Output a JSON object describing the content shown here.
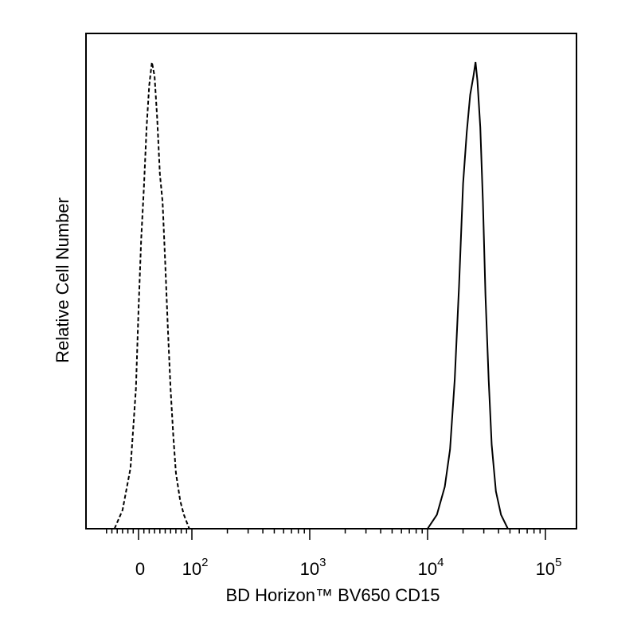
{
  "chart_data": {
    "type": "area",
    "title": "",
    "xlabel": "BD Horizon™  BV650 CD15",
    "ylabel": "Relative Cell Number",
    "xscale": "biexponential (linear near 0, log above 10^2)",
    "xlim": [
      -100,
      200000
    ],
    "ylim": [
      0,
      1.0
    ],
    "grid": false,
    "legend": "none",
    "x_ticks": [
      {
        "value": 0,
        "base": "0",
        "exp": ""
      },
      {
        "value": 100,
        "base": "10",
        "exp": "2"
      },
      {
        "value": 1000,
        "base": "10",
        "exp": "3"
      },
      {
        "value": 10000,
        "base": "10",
        "exp": "4"
      },
      {
        "value": 100000,
        "base": "10",
        "exp": "5"
      }
    ],
    "series": [
      {
        "style": "dashed",
        "x": [
          -45,
          -30,
          -15,
          -5,
          0,
          5,
          10,
          15,
          20,
          25,
          30,
          35,
          40,
          45,
          50,
          55,
          60,
          65,
          70,
          78,
          85,
          95
        ],
        "y": [
          0.0,
          0.04,
          0.13,
          0.3,
          0.47,
          0.62,
          0.73,
          0.86,
          0.95,
          1.0,
          0.97,
          0.88,
          0.76,
          0.7,
          0.57,
          0.43,
          0.3,
          0.2,
          0.12,
          0.06,
          0.03,
          0.0
        ]
      },
      {
        "style": "solid",
        "x": [
          10000,
          12000,
          14000,
          15500,
          17000,
          18500,
          20000,
          21500,
          23000,
          24500,
          25500,
          26500,
          28000,
          29500,
          31000,
          33000,
          35000,
          38000,
          42000,
          48000
        ],
        "y": [
          0.0,
          0.03,
          0.09,
          0.17,
          0.32,
          0.52,
          0.74,
          0.85,
          0.93,
          0.97,
          1.0,
          0.96,
          0.86,
          0.7,
          0.5,
          0.32,
          0.18,
          0.08,
          0.03,
          0.0
        ]
      }
    ]
  }
}
